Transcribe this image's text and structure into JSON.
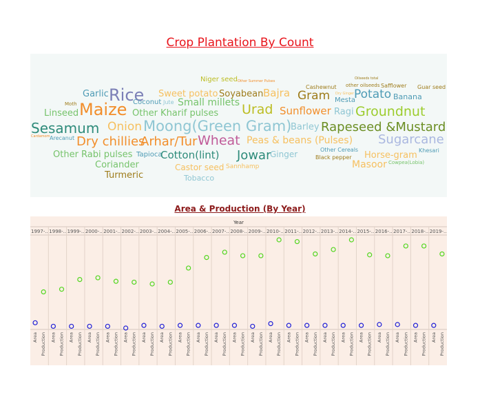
{
  "title1": "Crop Plantation By Count",
  "wordcloud": {
    "words": [
      {
        "t": "Niger seed",
        "c": "#bcbd22",
        "s": 10
      },
      {
        "t": "Other Summer Pulses",
        "c": "#f28e2b",
        "s": 5
      },
      {
        "t": "Oilseeds total",
        "c": "#9e7c1b",
        "s": 5
      },
      {
        "t": "Cashewnut",
        "c": "#9e7c1b",
        "s": 8
      },
      {
        "t": "other oilseeds",
        "c": "#9e7c1b",
        "s": 7
      },
      {
        "t": "Safflower",
        "c": "#9e7c1b",
        "s": 8
      },
      {
        "t": "Guar seed",
        "c": "#9e7c1b",
        "s": 8
      },
      {
        "t": "Garlic",
        "c": "#4e9bb5",
        "s": 13
      },
      {
        "t": "Rice",
        "c": "#7b7fb6",
        "s": 24
      },
      {
        "t": "Sweet potato",
        "c": "#f6c060",
        "s": 13
      },
      {
        "t": "Soyabean",
        "c": "#9e7c1b",
        "s": 13
      },
      {
        "t": "Bajra",
        "c": "#f6c060",
        "s": 15
      },
      {
        "t": "Gram",
        "c": "#9e7c1b",
        "s": 17
      },
      {
        "t": "Dry Ginger",
        "c": "#f6c060",
        "s": 5
      },
      {
        "t": "Mesta",
        "c": "#4e9bb5",
        "s": 10
      },
      {
        "t": "Potato",
        "c": "#4e9bb5",
        "s": 17
      },
      {
        "t": "Banana",
        "c": "#4e9bb5",
        "s": 11
      },
      {
        "t": "Moth",
        "c": "#9e7c1b",
        "s": 7
      },
      {
        "t": "Coconut",
        "c": "#4e9bb5",
        "s": 10
      },
      {
        "t": "Jute",
        "c": "#8fc6d3",
        "s": 8
      },
      {
        "t": "Small millets",
        "c": "#76c36b",
        "s": 14
      },
      {
        "t": "Linseed",
        "c": "#76c36b",
        "s": 13
      },
      {
        "t": "Maize",
        "c": "#f28e2b",
        "s": 24
      },
      {
        "t": "Other Kharif pulses",
        "c": "#76c36b",
        "s": 13
      },
      {
        "t": "Urad",
        "c": "#bcbd22",
        "s": 19
      },
      {
        "t": "Sunflower",
        "c": "#f28e2b",
        "s": 15
      },
      {
        "t": "Ragi",
        "c": "#8fc6d3",
        "s": 13
      },
      {
        "t": "Groundnut",
        "c": "#9ccc2d",
        "s": 19
      },
      {
        "t": "Sesamum",
        "c": "#2e8b7a",
        "s": 20
      },
      {
        "t": "Onion",
        "c": "#f6c060",
        "s": 17
      },
      {
        "t": "Moong(Green Gram)",
        "c": "#8fc6d3",
        "s": 21
      },
      {
        "t": "Barley",
        "c": "#8fc6d3",
        "s": 13
      },
      {
        "t": "Rapeseed &Mustard",
        "c": "#6b8e23",
        "s": 18
      },
      {
        "t": "Cardamom",
        "c": "#f28e2b",
        "s": 5
      },
      {
        "t": "Arecanut",
        "c": "#4e9bb5",
        "s": 8
      },
      {
        "t": "Dry chillies",
        "c": "#f28e2b",
        "s": 18
      },
      {
        "t": "Arhar/Tur",
        "c": "#f28e2b",
        "s": 18
      },
      {
        "t": "Wheat",
        "c": "#c05b99",
        "s": 19
      },
      {
        "t": "Peas & beans (Pulses)",
        "c": "#f6c060",
        "s": 14
      },
      {
        "t": "Sugarcane",
        "c": "#aab7e0",
        "s": 18
      },
      {
        "t": "Other Rabi pulses",
        "c": "#76c36b",
        "s": 13
      },
      {
        "t": "Tapioca",
        "c": "#4e9bb5",
        "s": 10
      },
      {
        "t": "Cotton(lint)",
        "c": "#2e8b7a",
        "s": 15
      },
      {
        "t": "Jowar",
        "c": "#2e8b7a",
        "s": 18
      },
      {
        "t": "Ginger",
        "c": "#8fc6d3",
        "s": 12
      },
      {
        "t": "Other Cereals",
        "c": "#4e9bb5",
        "s": 8
      },
      {
        "t": "Horse-gram",
        "c": "#f6c060",
        "s": 13
      },
      {
        "t": "Khesari",
        "c": "#4e9bb5",
        "s": 8
      },
      {
        "t": "Black pepper",
        "c": "#9e7c1b",
        "s": 8
      },
      {
        "t": "Coriander",
        "c": "#76c36b",
        "s": 13
      },
      {
        "t": "Castor seed",
        "c": "#f6c060",
        "s": 12
      },
      {
        "t": "Sannhamp",
        "c": "#f6c060",
        "s": 9
      },
      {
        "t": "Masoor",
        "c": "#f6c060",
        "s": 14
      },
      {
        "t": "Cowpea(Lobia)",
        "c": "#76c36b",
        "s": 7
      },
      {
        "t": "Turmeric",
        "c": "#9e7c1b",
        "s": 13
      },
      {
        "t": "Tobacco",
        "c": "#8fc6d3",
        "s": 11
      }
    ]
  },
  "title2": "Area & Production (By Year)",
  "chart_data": {
    "type": "scatter",
    "column_header": "Year",
    "categories": [
      "1997-..",
      "1998-..",
      "1999-..",
      "2000-..",
      "2001-..",
      "2002-..",
      "2003-..",
      "2004-..",
      "2005-..",
      "2006-..",
      "2007-..",
      "2008-..",
      "2009-..",
      "2010-..",
      "2011-..",
      "2012-..",
      "2013-..",
      "2014-..",
      "2015-..",
      "2016-..",
      "2017-..",
      "2018-..",
      "2019-.."
    ],
    "measures": [
      "Area",
      "Production"
    ],
    "ylim": [
      0,
      1
    ],
    "area_colour": "#1f1fd6",
    "production_colour": "#52d61f",
    "series": [
      {
        "values": [
          0.06,
          0.02,
          0.02,
          0.02,
          0.02,
          0.0,
          0.03,
          0.02,
          0.03,
          0.03,
          0.03,
          0.03,
          0.02,
          0.05,
          0.03,
          0.03,
          0.03,
          0.03,
          0.03,
          0.04,
          0.04,
          0.03,
          0.03
        ]
      },
      {
        "values": [
          0.41,
          0.44,
          0.55,
          0.57,
          0.53,
          0.52,
          0.5,
          0.52,
          0.68,
          0.8,
          0.86,
          0.82,
          0.82,
          1.0,
          0.98,
          0.84,
          0.89,
          1.0,
          0.83,
          0.82,
          0.93,
          0.93,
          0.84
        ]
      }
    ]
  }
}
